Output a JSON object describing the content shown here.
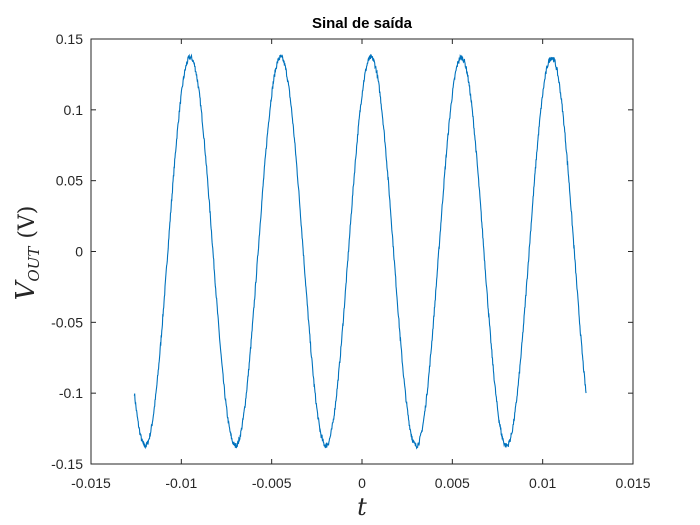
{
  "chart_data": {
    "type": "line",
    "title": "Sinal de saída",
    "xlabel": "t",
    "ylabel_main": "V",
    "ylabel_sub": "OUT",
    "ylabel_unit": "(V)",
    "xlim": [
      -0.015,
      0.015
    ],
    "ylim": [
      -0.15,
      0.15
    ],
    "xticks": [
      -0.015,
      -0.01,
      -0.005,
      0,
      0.005,
      0.01,
      0.015
    ],
    "xtick_labels": [
      "-0.015",
      "-0.01",
      "-0.005",
      "0",
      "0.005",
      "0.01",
      "0.015"
    ],
    "yticks": [
      -0.15,
      -0.1,
      -0.05,
      0,
      0.05,
      0.1,
      0.15
    ],
    "ytick_labels": [
      "-0.15",
      "-0.1",
      "-0.05",
      "0",
      "0.05",
      "0.1",
      "0.15"
    ],
    "grid": false,
    "series": [
      {
        "color": "#0072BD",
        "x_start": -0.0126,
        "x_end": 0.0124,
        "amplitude": 0.137,
        "offset": 0.0,
        "period": 0.005,
        "peak_at": -0.0095,
        "x": [
          -0.0126,
          -0.0121,
          -0.0095,
          -0.0045,
          0.0005,
          0.0055,
          0.0106,
          0.0124
        ],
        "y": [
          -0.095,
          -0.137,
          0.137,
          0.137,
          0.137,
          0.137,
          0.138,
          -0.092
        ]
      }
    ]
  }
}
